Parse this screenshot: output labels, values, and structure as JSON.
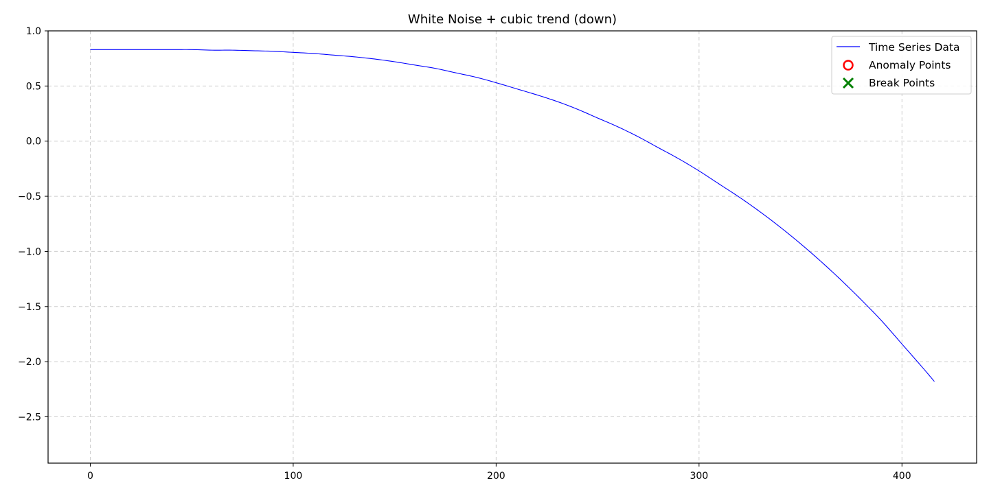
{
  "chart_data": {
    "type": "line",
    "title": "White Noise + cubic trend (down)",
    "xlabel": "",
    "ylabel": "",
    "xlim": [
      -20.8,
      436.8
    ],
    "ylim": [
      -2.92,
      1.0
    ],
    "xticks": [
      0,
      100,
      200,
      300,
      400
    ],
    "yticks": [
      1.0,
      0.5,
      0.0,
      -0.5,
      -1.0,
      -1.5,
      -2.0,
      -2.5
    ],
    "xtick_labels": [
      "0",
      "100",
      "200",
      "300",
      "400"
    ],
    "ytick_labels": [
      "1.0",
      "0.5",
      "0.0",
      "−0.5",
      "−1.0",
      "−1.5",
      "−2.0",
      "−2.5"
    ],
    "grid": true,
    "legend_position": "top-right",
    "series": [
      {
        "name": "Time Series Data",
        "color": "#0000ff",
        "x": [
          0,
          10,
          20,
          30,
          40,
          50,
          60,
          70,
          80,
          90,
          100,
          110,
          120,
          130,
          140,
          150,
          160,
          170,
          180,
          190,
          200,
          210,
          220,
          230,
          240,
          250,
          260,
          270,
          280,
          290,
          300,
          310,
          320,
          330,
          340,
          350,
          360,
          370,
          380,
          390,
          400,
          410,
          416
        ],
        "y": [
          0.83,
          0.83,
          0.83,
          0.83,
          0.83,
          0.83,
          0.825,
          0.825,
          0.82,
          0.815,
          0.805,
          0.795,
          0.78,
          0.765,
          0.745,
          0.72,
          0.69,
          0.66,
          0.62,
          0.58,
          0.53,
          0.475,
          0.42,
          0.36,
          0.29,
          0.21,
          0.13,
          0.04,
          -0.06,
          -0.16,
          -0.27,
          -0.39,
          -0.51,
          -0.64,
          -0.78,
          -0.93,
          -1.09,
          -1.26,
          -1.44,
          -1.63,
          -1.84,
          -2.05,
          -2.18
        ]
      }
    ],
    "anomaly_points": {
      "name": "Anomaly Points",
      "color": "#ff0000",
      "x": [],
      "y": []
    },
    "break_points": {
      "name": "Break Points",
      "color": "#008000",
      "x": [],
      "y": []
    }
  }
}
